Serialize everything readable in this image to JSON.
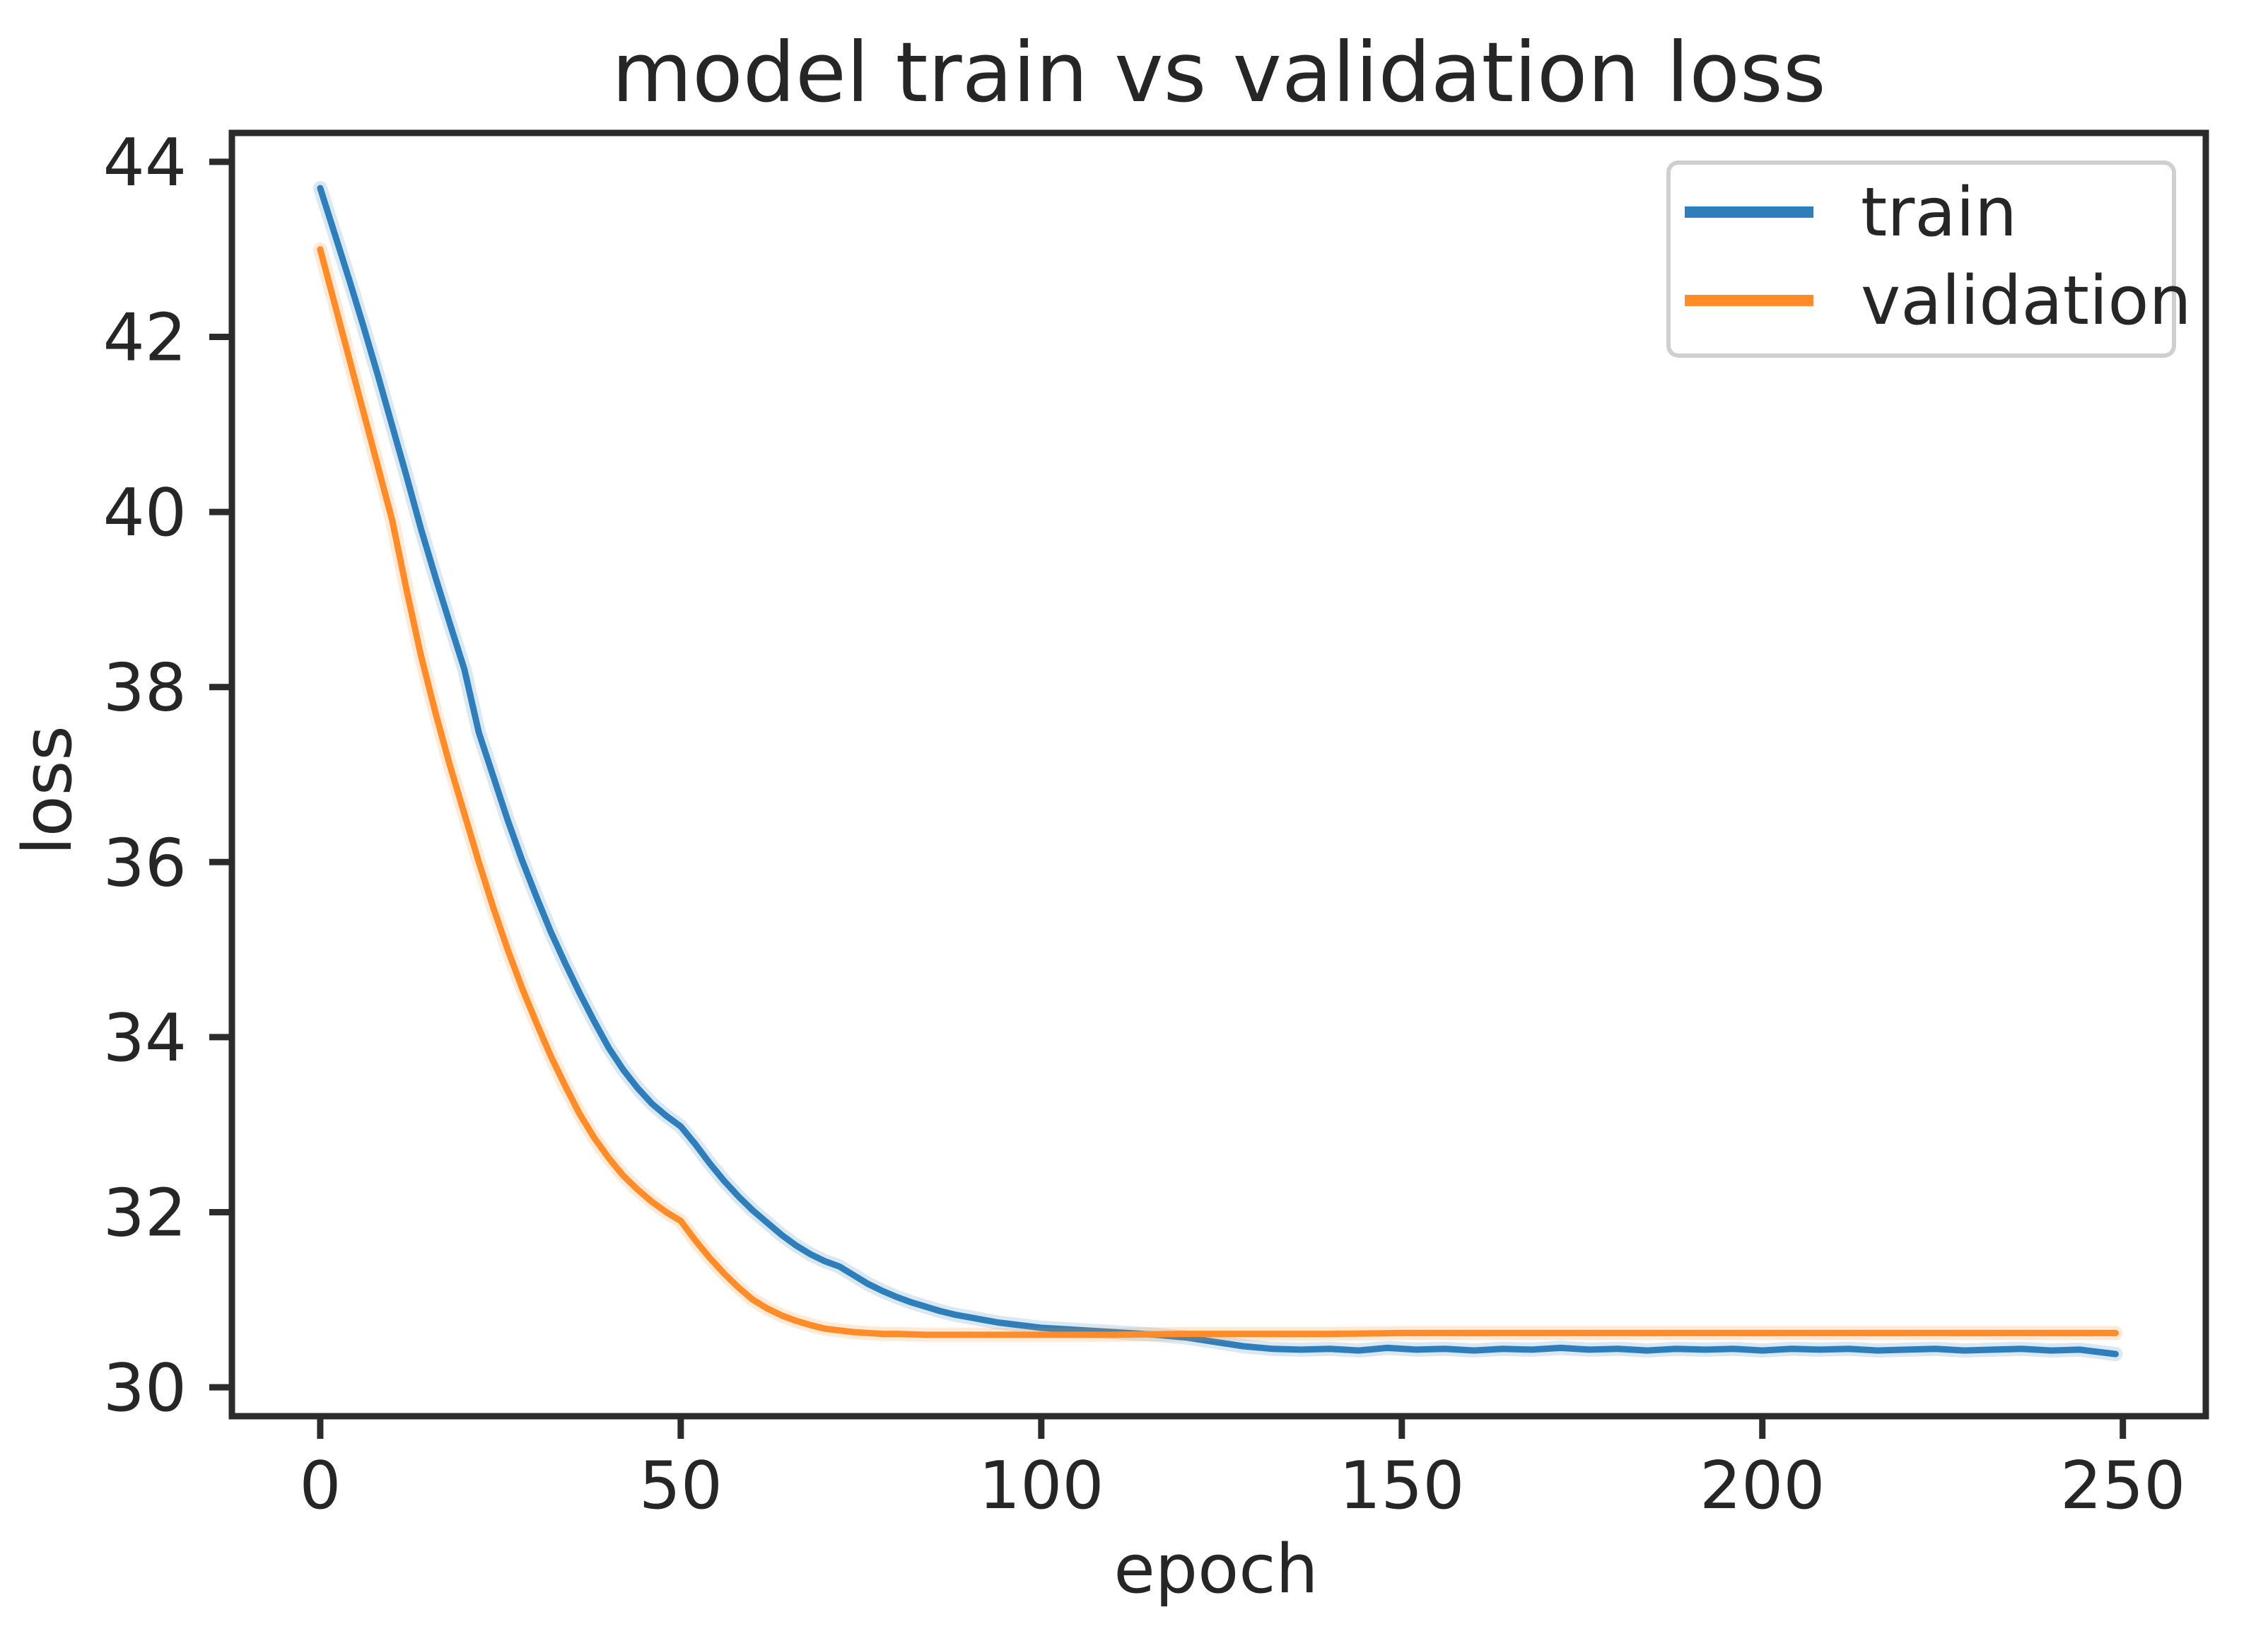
{
  "figure": {
    "background": "#ffffff",
    "spine_color": "#2b2b2b",
    "text_color": "#262626",
    "legend_border_color": "#cfcfcf"
  },
  "chart_data": {
    "type": "line",
    "title": "model train vs validation loss",
    "xlabel": "epoch",
    "ylabel": "loss",
    "xlim": [
      -12.25,
      261.5
    ],
    "ylim": [
      29.67,
      44.33
    ],
    "xticks": [
      0,
      50,
      100,
      150,
      200,
      250
    ],
    "yticks": [
      30,
      32,
      34,
      36,
      38,
      40,
      42,
      44
    ],
    "grid": false,
    "legend": {
      "position": "upper right",
      "entries": [
        "train",
        "validation"
      ]
    },
    "series": [
      {
        "name": "train",
        "color": "#2e7ebc",
        "points": [
          [
            0,
            43.7
          ],
          [
            2,
            43.18
          ],
          [
            4,
            42.66
          ],
          [
            6,
            42.12
          ],
          [
            8,
            41.56
          ],
          [
            10,
            40.98
          ],
          [
            12,
            40.4
          ],
          [
            14,
            39.8
          ],
          [
            16,
            39.25
          ],
          [
            18,
            38.72
          ],
          [
            20,
            38.2
          ],
          [
            22,
            37.48
          ],
          [
            24,
            36.98
          ],
          [
            26,
            36.48
          ],
          [
            28,
            36.02
          ],
          [
            30,
            35.6
          ],
          [
            32,
            35.2
          ],
          [
            34,
            34.84
          ],
          [
            36,
            34.5
          ],
          [
            38,
            34.18
          ],
          [
            40,
            33.88
          ],
          [
            42,
            33.63
          ],
          [
            44,
            33.42
          ],
          [
            46,
            33.24
          ],
          [
            48,
            33.1
          ],
          [
            50,
            32.98
          ],
          [
            52,
            32.78
          ],
          [
            54,
            32.56
          ],
          [
            56,
            32.36
          ],
          [
            58,
            32.18
          ],
          [
            60,
            32.02
          ],
          [
            62,
            31.88
          ],
          [
            64,
            31.74
          ],
          [
            66,
            31.62
          ],
          [
            68,
            31.52
          ],
          [
            70,
            31.44
          ],
          [
            72,
            31.38
          ],
          [
            74,
            31.28
          ],
          [
            76,
            31.18
          ],
          [
            78,
            31.1
          ],
          [
            80,
            31.03
          ],
          [
            82,
            30.97
          ],
          [
            84,
            30.92
          ],
          [
            86,
            30.87
          ],
          [
            88,
            30.83
          ],
          [
            90,
            30.8
          ],
          [
            92,
            30.77
          ],
          [
            94,
            30.74
          ],
          [
            96,
            30.72
          ],
          [
            98,
            30.7
          ],
          [
            100,
            30.68
          ],
          [
            104,
            30.66
          ],
          [
            108,
            30.64
          ],
          [
            112,
            30.62
          ],
          [
            116,
            30.6
          ],
          [
            120,
            30.57
          ],
          [
            124,
            30.52
          ],
          [
            128,
            30.47
          ],
          [
            132,
            30.44
          ],
          [
            136,
            30.43
          ],
          [
            140,
            30.44
          ],
          [
            144,
            30.42
          ],
          [
            148,
            30.45
          ],
          [
            152,
            30.43
          ],
          [
            156,
            30.44
          ],
          [
            160,
            30.42
          ],
          [
            164,
            30.44
          ],
          [
            168,
            30.43
          ],
          [
            172,
            30.45
          ],
          [
            176,
            30.43
          ],
          [
            180,
            30.44
          ],
          [
            184,
            30.42
          ],
          [
            188,
            30.44
          ],
          [
            192,
            30.43
          ],
          [
            196,
            30.44
          ],
          [
            200,
            30.42
          ],
          [
            204,
            30.44
          ],
          [
            208,
            30.43
          ],
          [
            212,
            30.44
          ],
          [
            216,
            30.42
          ],
          [
            220,
            30.43
          ],
          [
            224,
            30.44
          ],
          [
            228,
            30.42
          ],
          [
            232,
            30.43
          ],
          [
            236,
            30.44
          ],
          [
            240,
            30.42
          ],
          [
            244,
            30.43
          ],
          [
            247,
            30.4
          ],
          [
            249,
            30.38
          ]
        ]
      },
      {
        "name": "validation",
        "color": "#ff8c28",
        "points": [
          [
            0,
            43.0
          ],
          [
            2,
            42.38
          ],
          [
            4,
            41.76
          ],
          [
            6,
            41.14
          ],
          [
            8,
            40.52
          ],
          [
            10,
            39.9
          ],
          [
            12,
            39.1
          ],
          [
            14,
            38.35
          ],
          [
            16,
            37.7
          ],
          [
            18,
            37.1
          ],
          [
            20,
            36.55
          ],
          [
            22,
            36.0
          ],
          [
            24,
            35.48
          ],
          [
            26,
            35.0
          ],
          [
            28,
            34.56
          ],
          [
            30,
            34.16
          ],
          [
            32,
            33.78
          ],
          [
            34,
            33.44
          ],
          [
            36,
            33.12
          ],
          [
            38,
            32.85
          ],
          [
            40,
            32.62
          ],
          [
            42,
            32.42
          ],
          [
            44,
            32.26
          ],
          [
            46,
            32.12
          ],
          [
            48,
            32.0
          ],
          [
            50,
            31.9
          ],
          [
            52,
            31.68
          ],
          [
            54,
            31.48
          ],
          [
            56,
            31.3
          ],
          [
            58,
            31.14
          ],
          [
            60,
            31.0
          ],
          [
            62,
            30.9
          ],
          [
            64,
            30.82
          ],
          [
            66,
            30.76
          ],
          [
            68,
            30.71
          ],
          [
            70,
            30.67
          ],
          [
            72,
            30.65
          ],
          [
            74,
            30.63
          ],
          [
            76,
            30.62
          ],
          [
            78,
            30.61
          ],
          [
            80,
            30.61
          ],
          [
            84,
            30.6
          ],
          [
            88,
            30.6
          ],
          [
            92,
            30.6
          ],
          [
            96,
            30.6
          ],
          [
            100,
            30.6
          ],
          [
            110,
            30.6
          ],
          [
            120,
            30.61
          ],
          [
            130,
            30.61
          ],
          [
            140,
            30.61
          ],
          [
            150,
            30.62
          ],
          [
            160,
            30.62
          ],
          [
            170,
            30.62
          ],
          [
            180,
            30.62
          ],
          [
            190,
            30.62
          ],
          [
            200,
            30.62
          ],
          [
            210,
            30.62
          ],
          [
            220,
            30.62
          ],
          [
            230,
            30.62
          ],
          [
            240,
            30.62
          ],
          [
            249,
            30.62
          ]
        ]
      }
    ]
  }
}
